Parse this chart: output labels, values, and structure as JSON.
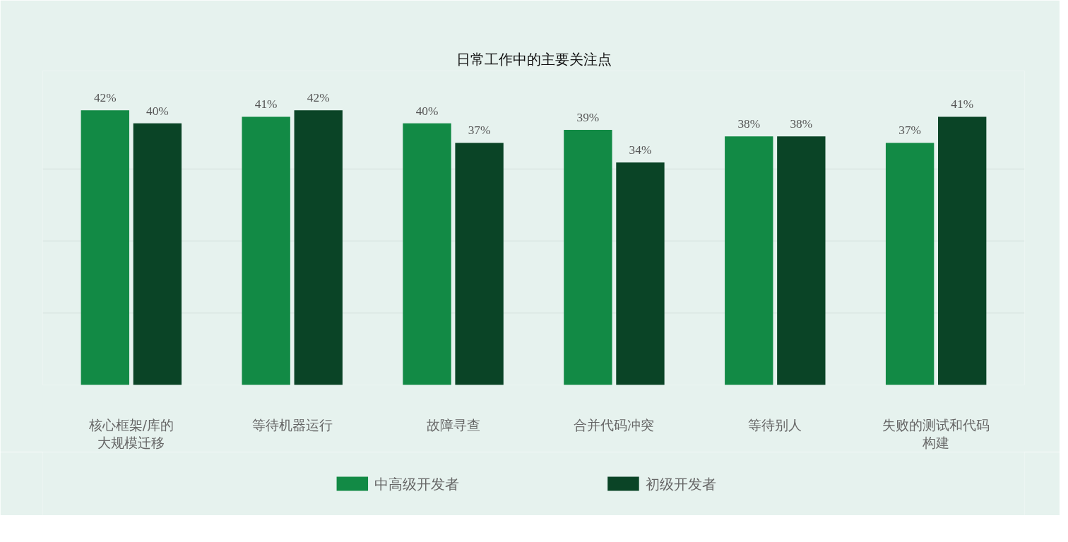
{
  "chart_data": {
    "type": "bar",
    "title": "日常工作中的主要关注点",
    "categories": [
      "核心框架/库的大规模迁移",
      "等待机器运行",
      "故障寻查",
      "合并代码冲突",
      "等待别人",
      "失败的测试和代码构建"
    ],
    "series": [
      {
        "name": "中高级开发者",
        "color": "#128a45",
        "values": [
          42,
          41,
          40,
          39,
          38,
          37
        ],
        "value_labels": [
          "42%",
          "41%",
          "40%",
          "39%",
          "38%",
          "37%"
        ]
      },
      {
        "name": "初级开发者",
        "color": "#0a4426",
        "values": [
          40,
          42,
          37,
          34,
          38,
          41
        ],
        "value_labels": [
          "40%",
          "42%",
          "37%",
          "34%",
          "38%",
          "41%"
        ]
      }
    ],
    "ylim": [
      0,
      48
    ],
    "yticks": [
      {
        "value": 0,
        "label": null
      },
      {
        "value": 11,
        "label": null
      },
      {
        "value": 22,
        "label": null
      },
      {
        "value": 33,
        "label": null
      }
    ],
    "grid": "y",
    "tick_labels": "x",
    "legend": "bottom"
  }
}
